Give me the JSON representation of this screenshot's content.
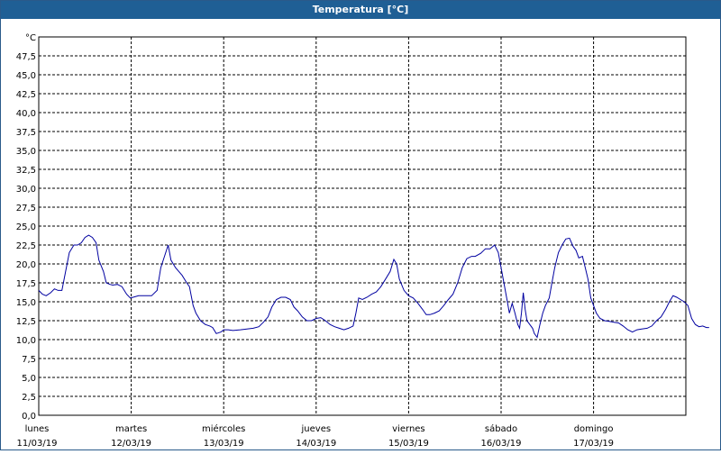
{
  "window": {
    "title": "Temperatura [°C]"
  },
  "chart_data": {
    "type": "line",
    "title": "Temperatura [°C]",
    "ylabel": "°C",
    "xlabel": "",
    "ylim": [
      0,
      50
    ],
    "xlim": [
      0,
      7
    ],
    "grid": true,
    "y_ticks": [
      "0,0",
      "2,5",
      "5,0",
      "7,5",
      "10,0",
      "12,5",
      "15,0",
      "17,5",
      "20,0",
      "22,5",
      "25,0",
      "27,5",
      "30,0",
      "32,5",
      "35,0",
      "37,5",
      "40,0",
      "42,5",
      "45,0",
      "47,5"
    ],
    "x_ticks": [
      {
        "day": "lunes",
        "date": "11/03/19"
      },
      {
        "day": "martes",
        "date": "12/03/19"
      },
      {
        "day": "miércoles",
        "date": "13/03/19"
      },
      {
        "day": "jueves",
        "date": "14/03/19"
      },
      {
        "day": "viernes",
        "date": "15/03/19"
      },
      {
        "day": "sábado",
        "date": "16/03/19"
      },
      {
        "day": "domingo",
        "date": "17/03/19"
      }
    ],
    "colors": {
      "series": "#0000a0",
      "grid": "#000000",
      "titlebar": "#1f5f95"
    },
    "series": [
      {
        "name": "",
        "points": [
          [
            0.0,
            16.5
          ],
          [
            0.04,
            16.0
          ],
          [
            0.08,
            15.8
          ],
          [
            0.13,
            16.2
          ],
          [
            0.17,
            16.7
          ],
          [
            0.21,
            16.5
          ],
          [
            0.25,
            16.5
          ],
          [
            0.29,
            19.0
          ],
          [
            0.33,
            21.5
          ],
          [
            0.38,
            22.5
          ],
          [
            0.42,
            22.5
          ],
          [
            0.46,
            22.8
          ],
          [
            0.5,
            23.5
          ],
          [
            0.54,
            23.8
          ],
          [
            0.58,
            23.5
          ],
          [
            0.62,
            22.8
          ],
          [
            0.65,
            20.5
          ],
          [
            0.7,
            19.0
          ],
          [
            0.73,
            17.5
          ],
          [
            0.77,
            17.3
          ],
          [
            0.8,
            17.2
          ],
          [
            0.85,
            17.3
          ],
          [
            0.9,
            17.0
          ],
          [
            0.95,
            16.0
          ],
          [
            0.99,
            15.5
          ],
          [
            1.02,
            15.6
          ],
          [
            1.08,
            15.8
          ],
          [
            1.15,
            15.8
          ],
          [
            1.22,
            15.8
          ],
          [
            1.28,
            16.5
          ],
          [
            1.32,
            19.5
          ],
          [
            1.36,
            21.0
          ],
          [
            1.4,
            22.5
          ],
          [
            1.43,
            20.5
          ],
          [
            1.48,
            19.5
          ],
          [
            1.55,
            18.5
          ],
          [
            1.6,
            17.5
          ],
          [
            1.63,
            17.0
          ],
          [
            1.67,
            14.5
          ],
          [
            1.7,
            13.5
          ],
          [
            1.75,
            12.5
          ],
          [
            1.8,
            12.0
          ],
          [
            1.85,
            11.8
          ],
          [
            1.88,
            11.6
          ],
          [
            1.92,
            10.8
          ],
          [
            1.97,
            11.0
          ],
          [
            2.0,
            11.3
          ],
          [
            2.05,
            11.3
          ],
          [
            2.1,
            11.2
          ],
          [
            2.18,
            11.3
          ],
          [
            2.25,
            11.4
          ],
          [
            2.32,
            11.5
          ],
          [
            2.38,
            11.7
          ],
          [
            2.43,
            12.3
          ],
          [
            2.48,
            13.0
          ],
          [
            2.52,
            14.3
          ],
          [
            2.57,
            15.3
          ],
          [
            2.62,
            15.6
          ],
          [
            2.67,
            15.6
          ],
          [
            2.72,
            15.3
          ],
          [
            2.76,
            14.3
          ],
          [
            2.8,
            13.8
          ],
          [
            2.85,
            13.0
          ],
          [
            2.9,
            12.5
          ],
          [
            2.95,
            12.5
          ],
          [
            3.0,
            12.8
          ],
          [
            3.05,
            12.9
          ],
          [
            3.1,
            12.5
          ],
          [
            3.15,
            12.0
          ],
          [
            3.2,
            11.7
          ],
          [
            3.25,
            11.5
          ],
          [
            3.3,
            11.3
          ],
          [
            3.35,
            11.5
          ],
          [
            3.4,
            11.8
          ],
          [
            3.43,
            13.5
          ],
          [
            3.46,
            15.5
          ],
          [
            3.5,
            15.3
          ],
          [
            3.55,
            15.6
          ],
          [
            3.6,
            16.0
          ],
          [
            3.65,
            16.3
          ],
          [
            3.7,
            17.0
          ],
          [
            3.75,
            18.0
          ],
          [
            3.8,
            19.0
          ],
          [
            3.84,
            20.6
          ],
          [
            3.87,
            20.0
          ],
          [
            3.9,
            18.0
          ],
          [
            3.95,
            16.5
          ],
          [
            4.0,
            15.8
          ],
          [
            4.05,
            15.5
          ],
          [
            4.1,
            14.8
          ],
          [
            4.15,
            14.0
          ],
          [
            4.19,
            13.3
          ],
          [
            4.23,
            13.3
          ],
          [
            4.28,
            13.5
          ],
          [
            4.33,
            13.8
          ],
          [
            4.38,
            14.5
          ],
          [
            4.43,
            15.3
          ],
          [
            4.48,
            16.0
          ],
          [
            4.53,
            17.5
          ],
          [
            4.58,
            19.5
          ],
          [
            4.63,
            20.7
          ],
          [
            4.68,
            21.0
          ],
          [
            4.72,
            21.0
          ],
          [
            4.78,
            21.4
          ],
          [
            4.83,
            22.0
          ],
          [
            4.88,
            22.0
          ],
          [
            4.93,
            22.5
          ],
          [
            4.97,
            21.5
          ],
          [
            5.0,
            19.5
          ],
          [
            5.03,
            17.5
          ],
          [
            5.06,
            15.5
          ],
          [
            5.09,
            13.5
          ],
          [
            5.12,
            14.8
          ],
          [
            5.15,
            13.5
          ],
          [
            5.18,
            12.0
          ],
          [
            5.2,
            11.5
          ],
          [
            5.22,
            13.5
          ],
          [
            5.24,
            16.2
          ],
          [
            5.26,
            14.0
          ],
          [
            5.28,
            12.5
          ],
          [
            5.31,
            12.0
          ],
          [
            5.34,
            11.5
          ],
          [
            5.36,
            10.8
          ],
          [
            5.39,
            10.3
          ],
          [
            5.42,
            12.0
          ],
          [
            5.45,
            13.5
          ],
          [
            5.48,
            14.5
          ],
          [
            5.52,
            15.5
          ],
          [
            5.55,
            17.5
          ],
          [
            5.58,
            19.5
          ],
          [
            5.62,
            21.5
          ],
          [
            5.66,
            22.5
          ],
          [
            5.7,
            23.3
          ],
          [
            5.74,
            23.4
          ],
          [
            5.78,
            22.3
          ],
          [
            5.81,
            21.8
          ],
          [
            5.84,
            20.8
          ],
          [
            5.88,
            21.0
          ],
          [
            5.91,
            19.5
          ],
          [
            5.94,
            18.0
          ],
          [
            5.97,
            15.5
          ],
          [
            6.0,
            14.5
          ],
          [
            6.03,
            13.5
          ],
          [
            6.07,
            12.8
          ],
          [
            6.12,
            12.5
          ],
          [
            6.17,
            12.4
          ],
          [
            6.22,
            12.3
          ],
          [
            6.27,
            12.2
          ],
          [
            6.32,
            11.8
          ],
          [
            6.37,
            11.3
          ],
          [
            6.42,
            11.0
          ],
          [
            6.47,
            11.3
          ],
          [
            6.52,
            11.4
          ],
          [
            6.58,
            11.5
          ],
          [
            6.63,
            11.8
          ],
          [
            6.68,
            12.5
          ],
          [
            6.73,
            13.0
          ],
          [
            6.78,
            14.0
          ],
          [
            6.82,
            15.0
          ],
          [
            6.86,
            15.8
          ],
          [
            6.9,
            15.6
          ],
          [
            6.94,
            15.3
          ],
          [
            6.98,
            15.0
          ],
          [
            7.02,
            14.5
          ],
          [
            7.06,
            12.8
          ],
          [
            7.1,
            12.0
          ],
          [
            7.14,
            11.7
          ],
          [
            7.18,
            11.8
          ],
          [
            7.22,
            11.6
          ],
          [
            7.25,
            11.6
          ]
        ]
      }
    ]
  }
}
